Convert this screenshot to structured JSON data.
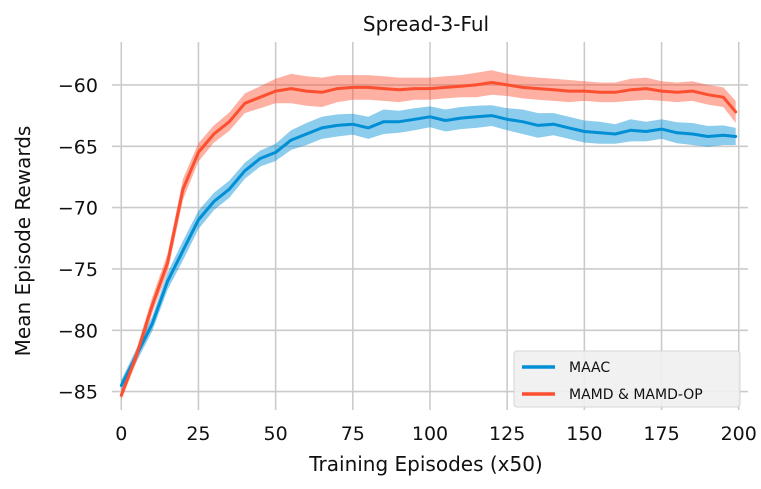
{
  "chart_data": {
    "type": "line",
    "title": "Spread-3-Ful",
    "xlabel": "Training Episodes (x50)",
    "ylabel": "Mean Episode Rewards",
    "xlim": [
      -3,
      203
    ],
    "ylim": [
      -86.5,
      -56.5
    ],
    "xticks": [
      0,
      25,
      50,
      75,
      100,
      125,
      150,
      175,
      200
    ],
    "yticks": [
      -85,
      -80,
      -75,
      -70,
      -65,
      -60
    ],
    "xtick_labels": [
      "0",
      "25",
      "50",
      "75",
      "100",
      "125",
      "150",
      "175",
      "200"
    ],
    "ytick_labels": [
      "−85",
      "−80",
      "−75",
      "−70",
      "−65",
      "−60"
    ],
    "grid": true,
    "legend_position": "lower-right",
    "series": [
      {
        "name": "MAAC",
        "color": "#008fd5",
        "x": [
          0,
          5,
          10,
          15,
          20,
          25,
          30,
          35,
          40,
          45,
          50,
          55,
          60,
          65,
          70,
          75,
          80,
          85,
          90,
          95,
          100,
          105,
          110,
          115,
          120,
          125,
          130,
          135,
          140,
          145,
          150,
          155,
          160,
          165,
          170,
          175,
          180,
          185,
          190,
          195,
          199
        ],
        "y": [
          -84.5,
          -82,
          -79.5,
          -76,
          -73.5,
          -71,
          -69.5,
          -68.5,
          -67,
          -66,
          -65.5,
          -64.5,
          -64,
          -63.5,
          -63.3,
          -63.2,
          -63.5,
          -63,
          -63,
          -62.8,
          -62.6,
          -62.9,
          -62.7,
          -62.6,
          -62.5,
          -62.8,
          -63,
          -63.3,
          -63.2,
          -63.5,
          -63.8,
          -63.9,
          -64,
          -63.7,
          -63.8,
          -63.6,
          -63.9,
          -64,
          -64.2,
          -64.1,
          -64.2
        ],
        "band": [
          0.45,
          0.55,
          0.6,
          0.7,
          0.8,
          0.75,
          0.7,
          0.7,
          0.65,
          0.65,
          0.7,
          0.8,
          0.9,
          0.9,
          0.9,
          0.85,
          0.9,
          1.0,
          0.9,
          0.9,
          0.85,
          0.9,
          0.9,
          0.9,
          0.85,
          0.9,
          1.0,
          1.0,
          0.9,
          0.9,
          0.9,
          0.9,
          0.8,
          0.9,
          0.8,
          0.8,
          0.85,
          0.9,
          0.85,
          0.8,
          0.7
        ]
      },
      {
        "name": "MAMD & MAMD-OP",
        "color": "#fc4f30",
        "x": [
          0,
          5,
          10,
          15,
          20,
          25,
          30,
          35,
          40,
          45,
          50,
          55,
          60,
          65,
          70,
          75,
          80,
          85,
          90,
          95,
          100,
          105,
          110,
          115,
          120,
          125,
          130,
          135,
          140,
          145,
          150,
          155,
          160,
          165,
          170,
          175,
          180,
          185,
          190,
          195,
          199
        ],
        "y": [
          -85.3,
          -82,
          -78,
          -74.5,
          -68.5,
          -65.5,
          -64,
          -63,
          -61.5,
          -61,
          -60.5,
          -60.3,
          -60.5,
          -60.6,
          -60.3,
          -60.2,
          -60.2,
          -60.3,
          -60.4,
          -60.3,
          -60.3,
          -60.2,
          -60.1,
          -60,
          -59.8,
          -60,
          -60.2,
          -60.3,
          -60.4,
          -60.5,
          -60.5,
          -60.6,
          -60.6,
          -60.4,
          -60.3,
          -60.5,
          -60.6,
          -60.5,
          -60.8,
          -61,
          -62.2
        ],
        "band": [
          0.4,
          0.55,
          0.65,
          0.75,
          0.85,
          0.75,
          0.7,
          0.75,
          0.8,
          0.9,
          1.0,
          1.2,
          1.2,
          1.2,
          1.1,
          1.0,
          1.0,
          1.0,
          1.0,
          0.9,
          0.9,
          0.9,
          0.9,
          1.0,
          1.0,
          0.9,
          0.9,
          0.9,
          0.9,
          0.9,
          0.8,
          0.8,
          0.8,
          0.9,
          0.9,
          0.8,
          0.8,
          0.8,
          0.8,
          0.8,
          0.9
        ]
      }
    ]
  }
}
